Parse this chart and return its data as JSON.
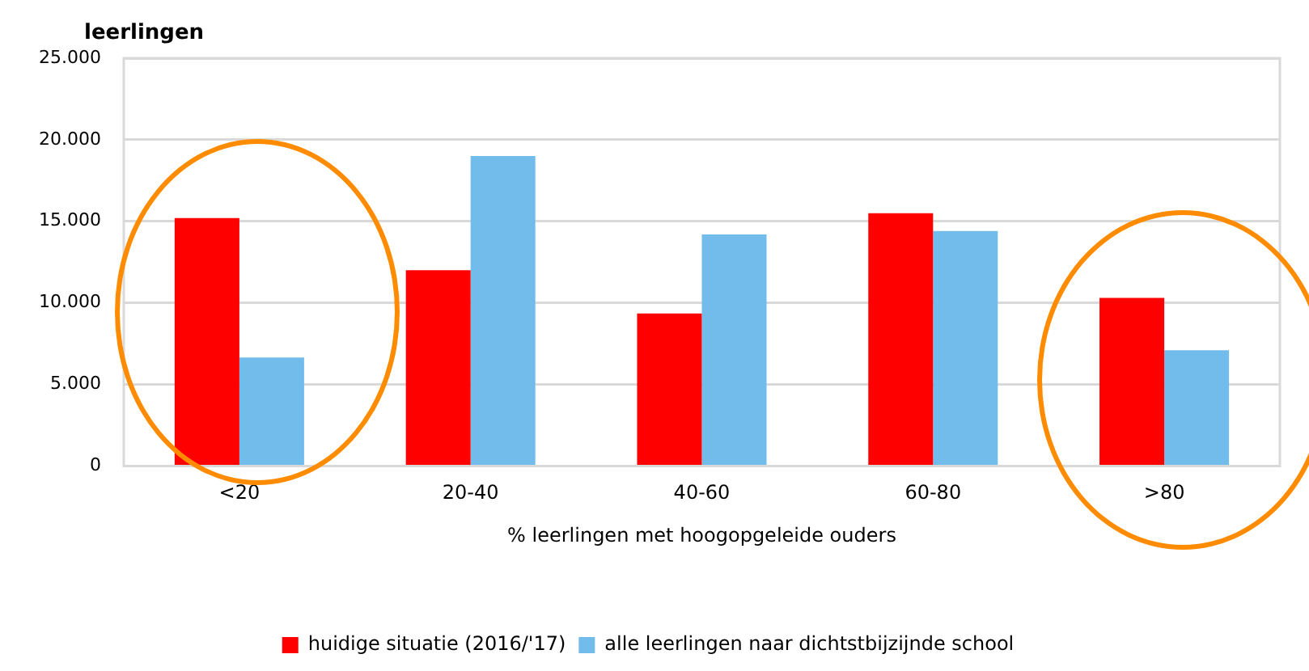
{
  "chart_data": {
    "type": "bar",
    "ylabel": "leerlingen",
    "xlabel": "% leerlingen met hoogopgeleide ouders",
    "categories": [
      "<20",
      "20-40",
      "40-60",
      "60-80",
      ">80"
    ],
    "series": [
      {
        "name": "huidige situatie (2016/'17)",
        "color": "#ff0000",
        "values": [
          15200,
          12000,
          9350,
          15500,
          10300
        ]
      },
      {
        "name": "alle leerlingen naar dichtstbijzijnde school",
        "color": "#72bcec",
        "values": [
          6650,
          19000,
          14200,
          14400,
          7100
        ]
      }
    ],
    "ylim": [
      0,
      25000
    ],
    "yticks": [
      0,
      {
        "value": 5000,
        "label": "5.000"
      },
      {
        "value": 10000,
        "label": "10.000"
      },
      {
        "value": 15000,
        "label": "15.000"
      },
      {
        "value": 20000,
        "label": "20.000"
      },
      {
        "value": 25000,
        "label": "25.000"
      }
    ],
    "grid": "y",
    "legend": "bottom"
  }
}
